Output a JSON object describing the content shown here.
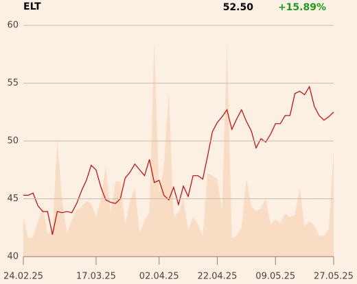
{
  "chart_data": {
    "type": "line",
    "title": "ELT",
    "price_label": "52.50",
    "change_label": "+15.89%",
    "change_color": "#1a9e1a",
    "categories": [
      "24.02.25",
      null,
      null,
      null,
      null,
      null,
      null,
      null,
      null,
      null,
      null,
      null,
      null,
      null,
      null,
      "17.03.25",
      null,
      null,
      null,
      null,
      null,
      null,
      null,
      null,
      null,
      null,
      null,
      null,
      "02.04.25",
      null,
      null,
      null,
      null,
      null,
      null,
      null,
      null,
      null,
      null,
      null,
      "22.04.25",
      null,
      null,
      null,
      null,
      null,
      null,
      null,
      null,
      null,
      null,
      null,
      "09.05.25",
      null,
      null,
      null,
      null,
      null,
      null,
      null,
      null,
      null,
      null,
      null,
      "27.05.25"
    ],
    "series": [
      {
        "kind": "area",
        "color": "#f8dcc4",
        "values": [
          43.4,
          41.6,
          41.7,
          43.0,
          44.3,
          42.0,
          42.2,
          50.1,
          44.8,
          42.0,
          43.2,
          44.0,
          44.3,
          44.8,
          44.6,
          43.4,
          45.0,
          47.8,
          43.8,
          46.5,
          46.5,
          42.8,
          44.8,
          46.0,
          42.0,
          43.2,
          43.8,
          58.5,
          45.5,
          47.8,
          54.2,
          43.5,
          43.8,
          45.0,
          42.3,
          43.4,
          42.8,
          41.8,
          47.2,
          47.0,
          46.7,
          44.0,
          58.5,
          41.6,
          41.8,
          42.5,
          46.7,
          44.4,
          43.9,
          44.2,
          45.0,
          42.8,
          43.2,
          42.9,
          43.7,
          43.4,
          43.6,
          46.0,
          42.6,
          43.1,
          42.7,
          41.8,
          41.8,
          42.4,
          49.3
        ]
      },
      {
        "kind": "line",
        "color": "#cc0000",
        "values": [
          45.3,
          45.3,
          45.5,
          44.4,
          43.9,
          43.9,
          41.9,
          43.9,
          43.8,
          43.9,
          43.8,
          44.6,
          45.7,
          46.6,
          47.9,
          47.5,
          46.0,
          44.9,
          44.7,
          44.6,
          45.0,
          46.8,
          47.3,
          48.0,
          47.5,
          47.0,
          48.4,
          46.4,
          46.6,
          45.3,
          44.9,
          46.0,
          44.5,
          46.1,
          45.2,
          47.0,
          47.0,
          46.7,
          48.7,
          50.8,
          51.6,
          52.1,
          52.7,
          51.0,
          51.9,
          52.7,
          51.7,
          50.9,
          49.4,
          50.2,
          49.9,
          50.6,
          51.5,
          51.5,
          52.2,
          52.2,
          54.1,
          54.3,
          54.0,
          54.7,
          53.0,
          52.2,
          51.8,
          52.1,
          52.5
        ]
      }
    ],
    "ylim": [
      40,
      60
    ],
    "yticks": [
      40,
      45,
      50,
      55,
      60
    ],
    "grid": true
  }
}
